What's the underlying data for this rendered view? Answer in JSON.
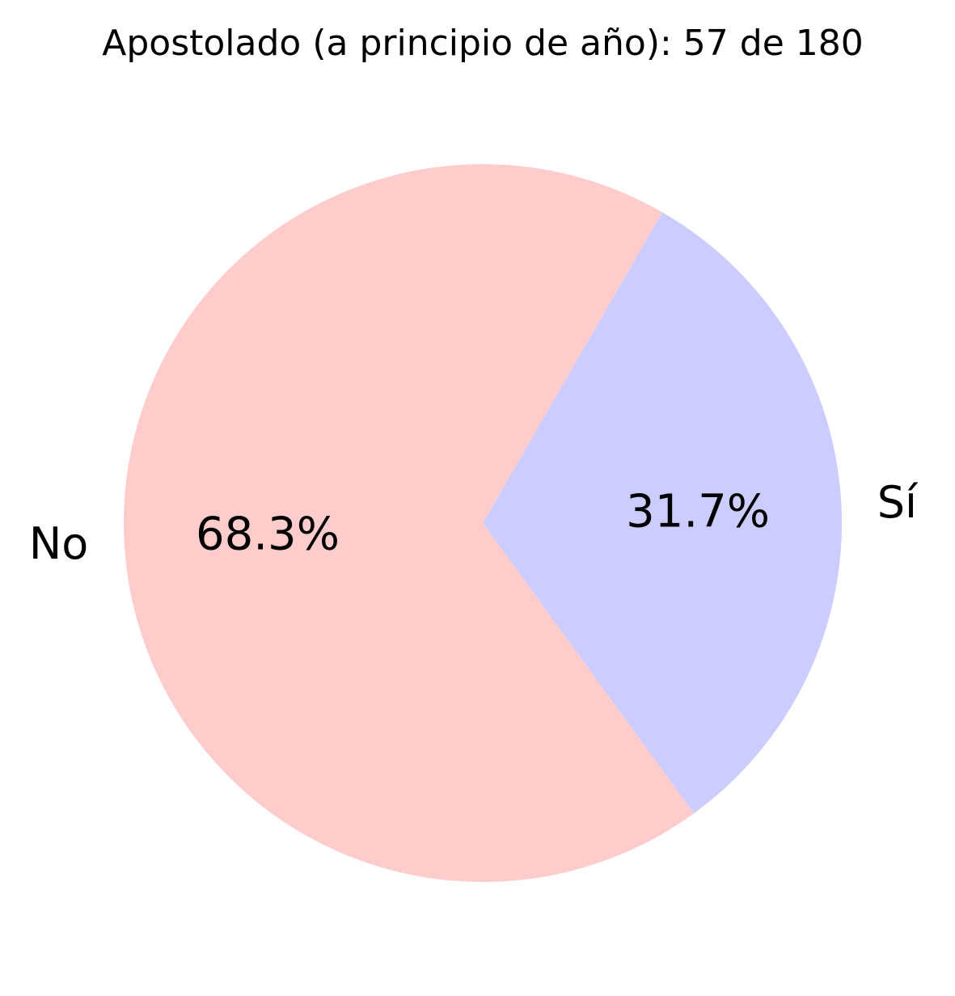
{
  "chart_data": {
    "type": "pie",
    "title": "Apostolado (a principio de año): 57 de 180",
    "slices": [
      {
        "label": "Sí",
        "value": 57,
        "percent_label": "31.7%",
        "color": "#ccccff"
      },
      {
        "label": "No",
        "value": 123,
        "percent_label": "68.3%",
        "color": "#ffcccc"
      }
    ],
    "start_angle_deg": -54,
    "direction": "counterclockwise",
    "legend": "none"
  }
}
